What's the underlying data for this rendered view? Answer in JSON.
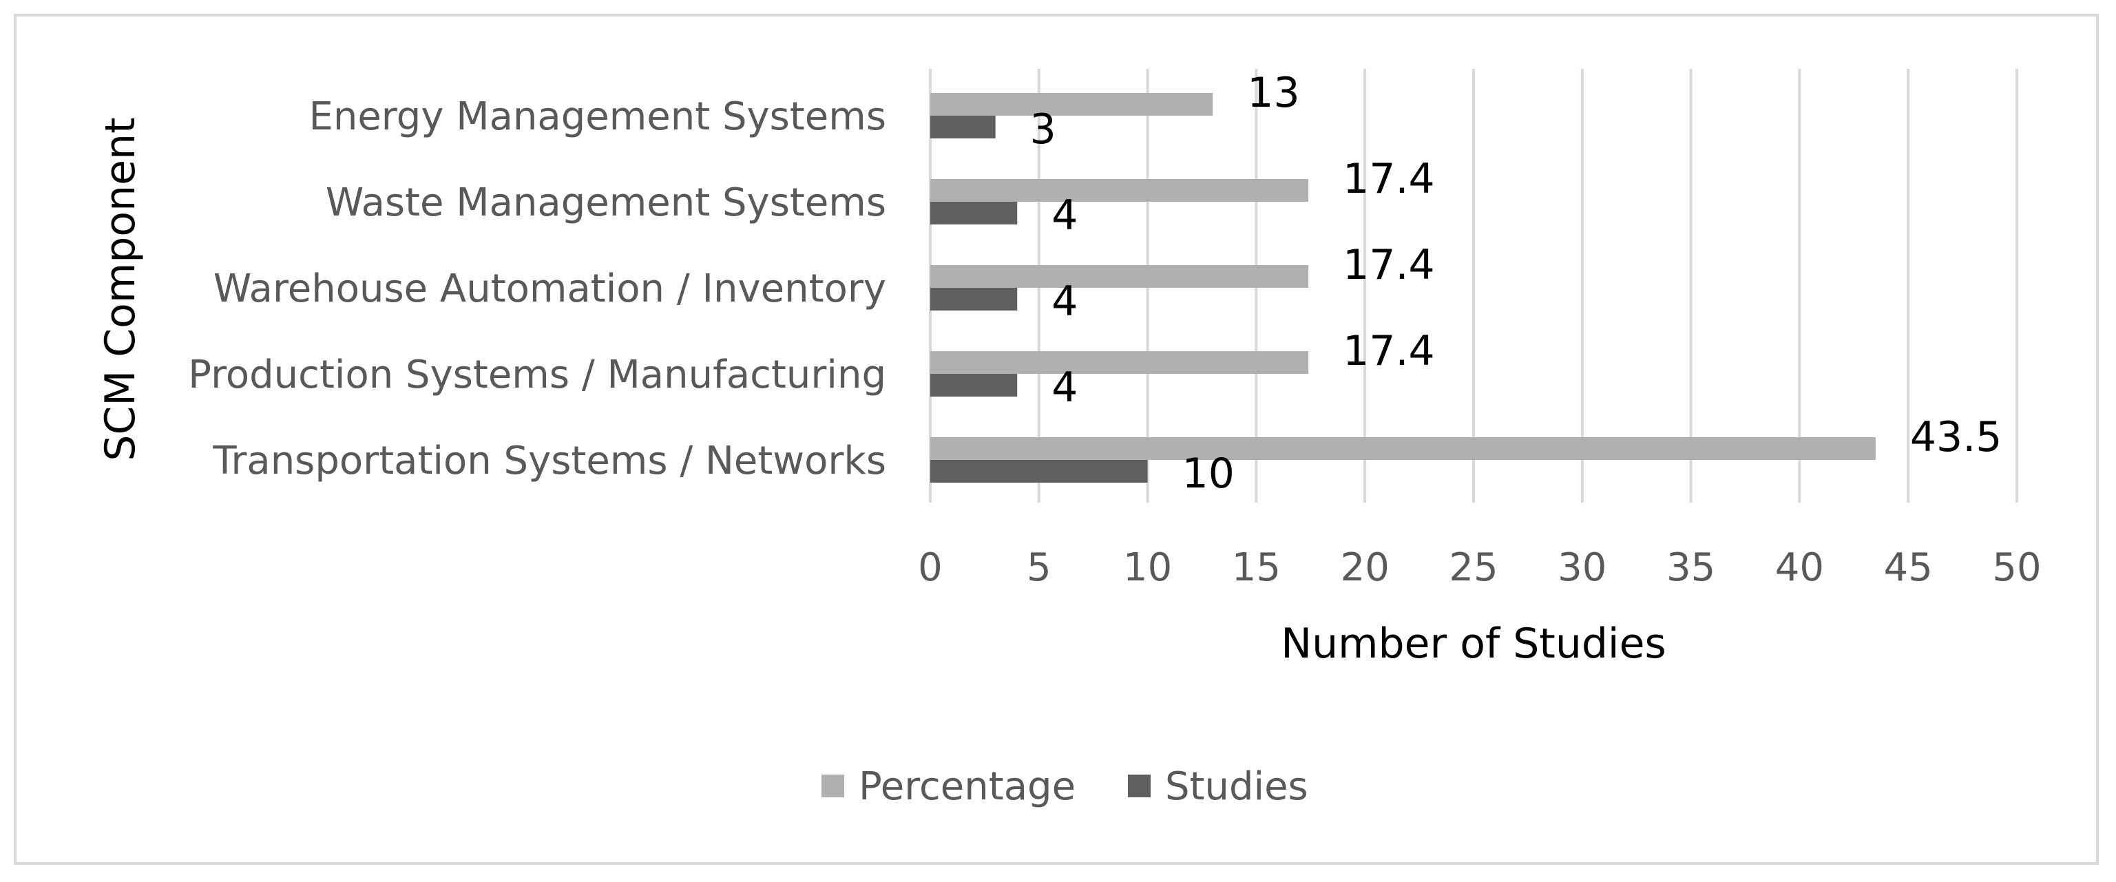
{
  "chart_data": {
    "type": "bar",
    "orientation": "horizontal",
    "title": "",
    "xlabel": "Number of Studies",
    "ylabel": "SCM Component",
    "categories": [
      "Energy Management Systems",
      "Waste Management Systems",
      "Warehouse Automation / Inventory",
      "Production Systems / Manufacturing",
      "Transportation Systems / Networks"
    ],
    "series": [
      {
        "name": "Percentage",
        "values": [
          13,
          17.4,
          17.4,
          17.4,
          43.5
        ],
        "color": "#b0b0b0"
      },
      {
        "name": "Studies",
        "values": [
          3,
          4,
          4,
          4,
          10
        ],
        "color": "#5f5f5f"
      }
    ],
    "xlim": [
      0,
      50
    ],
    "xticks": [
      0,
      5,
      10,
      15,
      20,
      25,
      30,
      35,
      40,
      45,
      50
    ],
    "grid": "vertical",
    "legend_position": "bottom",
    "data_labels": true
  }
}
